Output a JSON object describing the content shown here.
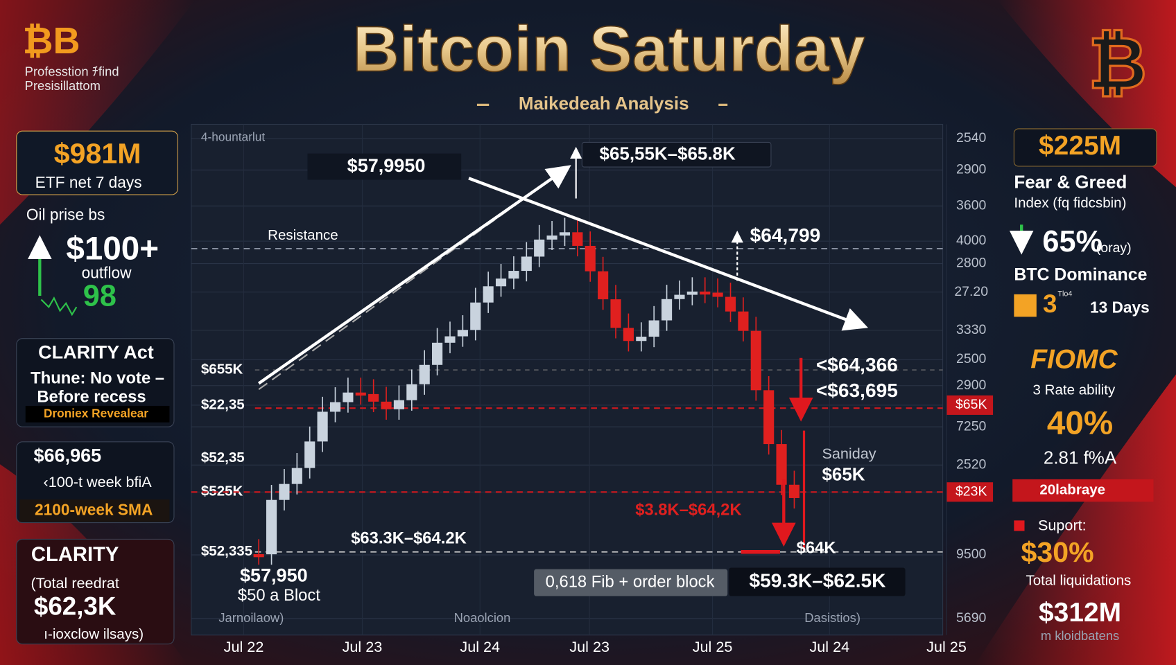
{
  "header": {
    "logo": "₿B",
    "brand_line1": "Professtion ﾁfind",
    "brand_line2": "Presisillattom",
    "title": "Bitcoin Saturday",
    "subtitle": "Maikedeah Analysis",
    "logo_right": "₿"
  },
  "left_panel": {
    "etf": {
      "value": "$981M",
      "label": "ETF net 7 days"
    },
    "oil": {
      "label": "Oil prise bs",
      "value": "$100+",
      "note": "outflow",
      "number": "98"
    },
    "clarity_act": {
      "title": "CLARITY Act",
      "line1": "Thune: No vote –",
      "line2": "Before recess",
      "line3": "Droniex Revealear"
    },
    "sma": {
      "value": "$66,965",
      "line1": "‹100-t week bfiA",
      "line2": "2100-week SMA"
    },
    "clarity": {
      "title": "CLARITY",
      "line1": "(Total reedrat",
      "value": "$62,3K",
      "line2": "ı-ioxclow ilsays)"
    }
  },
  "right_panel": {
    "fng": {
      "value": "$225M",
      "title": "Fear & Greed",
      "subtitle": "Index (fq fidcsbin)",
      "percent": "65%",
      "percent_note": "(oray)"
    },
    "dominance": {
      "title": "BTC Dominance",
      "tag": "Tlo4",
      "value": "3",
      "days": "13 Days"
    },
    "fomc": {
      "title": "FIOMC",
      "line1": "3 Rate ability",
      "value": "40%",
      "line2": "2.81 f%A",
      "banner": "20labraye"
    },
    "liquidations": {
      "label": "Suport:",
      "value": "$30%",
      "line1": "Total liquidations",
      "total": "$312M",
      "note": "m kloidbatens"
    }
  },
  "chart": {
    "timeframe": "4-hountarlut",
    "annotations": [
      "$57,9950",
      "$65,55K–$65.8K",
      "Resistance",
      "$64,799",
      "<$64,366",
      "<$63,695",
      "Saniday",
      "$65K",
      "$3.8K–$64,2K",
      "$64K",
      "$63.3K–$64.2K",
      "$57,950",
      "$50 a Bloct",
      "0,618 Fib + order block",
      "$59.3K–$62.5K"
    ],
    "left_axis": [
      "$655K",
      "$22,35",
      "$52,35",
      "$525K",
      "$52,335"
    ],
    "right_axis": [
      "2540",
      "2900",
      "3600",
      "4000",
      "2800",
      "27.20",
      "3330",
      "2500",
      "2900",
      "$65K",
      "7250",
      "2520",
      "$23K",
      "9500",
      "5690"
    ],
    "bottom_notes": [
      "Jarnoilaow)",
      "Noaolcion",
      "Dasistios)"
    ],
    "x_axis": [
      "Jul 22",
      "Jul 23",
      "Jul 24",
      "Jul 23",
      "Jul 25",
      "Jul 24",
      "Jul 25"
    ]
  }
}
